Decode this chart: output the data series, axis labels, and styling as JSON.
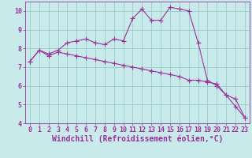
{
  "line1_x": [
    0,
    1,
    2,
    3,
    4,
    5,
    6,
    7,
    8,
    9,
    10,
    11,
    12,
    13,
    14,
    15,
    16,
    17,
    18,
    19,
    20,
    21,
    22,
    23
  ],
  "line1_y": [
    7.3,
    7.9,
    7.7,
    7.9,
    8.3,
    8.4,
    8.5,
    8.3,
    8.2,
    8.5,
    8.4,
    9.6,
    10.1,
    9.5,
    9.5,
    10.2,
    10.1,
    10.0,
    8.3,
    6.3,
    6.0,
    5.5,
    5.3,
    4.3
  ],
  "line2_x": [
    0,
    1,
    2,
    3,
    4,
    5,
    6,
    7,
    8,
    9,
    10,
    11,
    12,
    13,
    14,
    15,
    16,
    17,
    18,
    19,
    20,
    21,
    22,
    23
  ],
  "line2_y": [
    7.3,
    7.9,
    7.6,
    7.8,
    7.7,
    7.6,
    7.5,
    7.4,
    7.3,
    7.2,
    7.1,
    7.0,
    6.9,
    6.8,
    6.7,
    6.6,
    6.5,
    6.3,
    6.3,
    6.2,
    6.1,
    5.5,
    4.9,
    4.3
  ],
  "line_color": "#993399",
  "bg_color": "#c8eaea",
  "grid_color": "#99cccc",
  "xlabel": "Windchill (Refroidissement éolien,°C)",
  "xlim": [
    -0.5,
    23.5
  ],
  "ylim": [
    4,
    10.5
  ],
  "yticks": [
    4,
    5,
    6,
    7,
    8,
    9,
    10
  ],
  "xticks": [
    0,
    1,
    2,
    3,
    4,
    5,
    6,
    7,
    8,
    9,
    10,
    11,
    12,
    13,
    14,
    15,
    16,
    17,
    18,
    19,
    20,
    21,
    22,
    23
  ],
  "marker": "+",
  "markersize": 5,
  "linewidth": 0.8,
  "xlabel_fontsize": 7,
  "tick_fontsize": 6,
  "line_color2": "#993399"
}
